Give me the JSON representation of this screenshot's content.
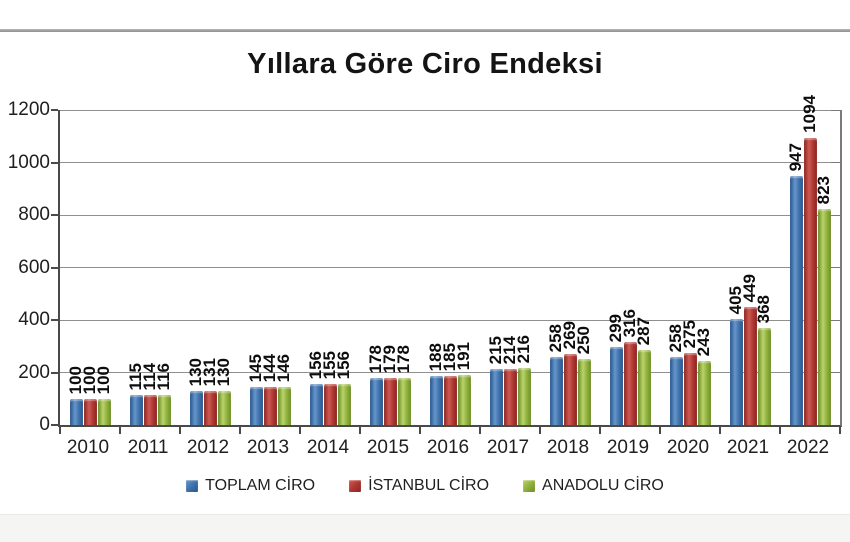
{
  "chart_data": {
    "type": "bar",
    "title": "Yıllara Göre Ciro Endeksi",
    "categories": [
      "2010",
      "2011",
      "2012",
      "2013",
      "2014",
      "2015",
      "2016",
      "2017",
      "2018",
      "2019",
      "2020",
      "2021",
      "2022"
    ],
    "series": [
      {
        "name": "TOPLAM CİRO",
        "color": "#3D6FA8",
        "color_dark": "#2A578F",
        "color_light": "#6596CB",
        "values": [
          100,
          115,
          130,
          145,
          156,
          178,
          188,
          215,
          258,
          299,
          258,
          405,
          947
        ]
      },
      {
        "name": "İSTANBUL CİRO",
        "color": "#AC3430",
        "color_dark": "#8E2622",
        "color_light": "#CD5A52",
        "values": [
          100,
          114,
          131,
          144,
          155,
          179,
          185,
          214,
          269,
          316,
          275,
          449,
          1094
        ]
      },
      {
        "name": "ANADOLU CİRO",
        "color": "#8CAD3A",
        "color_dark": "#6D8F26",
        "color_light": "#B9D36A",
        "values": [
          100,
          116,
          130,
          146,
          156,
          178,
          191,
          216,
          250,
          287,
          243,
          368,
          823
        ]
      }
    ],
    "ylim": [
      0,
      1200
    ],
    "ytick_step": 200,
    "ytick_labels": [
      "0",
      "200",
      "400",
      "600",
      "800",
      "1000",
      "1200"
    ],
    "grid": true,
    "legend_position": "bottom",
    "bar_labels": true,
    "bar_label_rotation": -90,
    "axis_color": "#4a4a4a",
    "gridline_color": "#8f8f8f"
  }
}
